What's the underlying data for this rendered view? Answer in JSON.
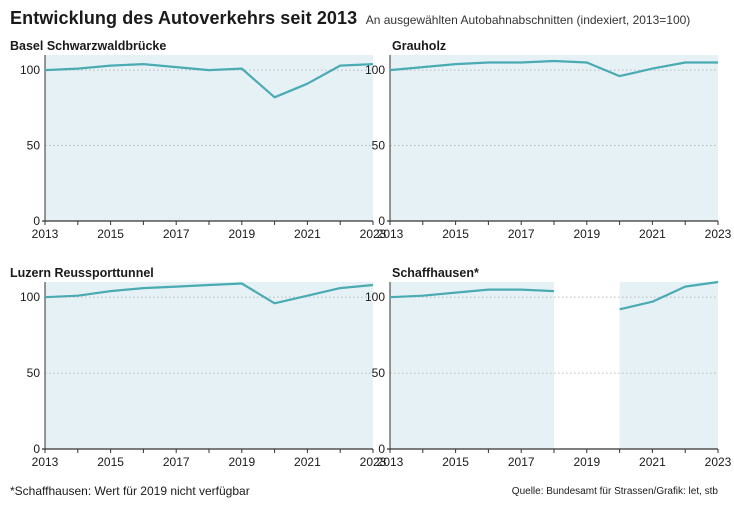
{
  "header": {
    "title": "Entwicklung des Autoverkehrs seit 2013",
    "subtitle": "An ausgewählten Autobahnabschnitten (indexiert, 2013=100)"
  },
  "footer": {
    "note": "*Schaffhausen: Wert für 2019 nicht verfügbar",
    "source": "Quelle: Bundesamt für Strassen/Grafik: let, stb"
  },
  "colors": {
    "line": "#4aabb2",
    "area": "#e6f1f6",
    "grid": "#b9b9b9",
    "axis": "#333333"
  },
  "chart_data": [
    {
      "type": "area",
      "title": "Basel Schwarzwaldbrücke",
      "x": [
        2013,
        2014,
        2015,
        2016,
        2017,
        2018,
        2019,
        2020,
        2021,
        2022,
        2023
      ],
      "y": [
        100,
        101,
        103,
        104,
        102,
        100,
        101,
        82,
        91,
        103,
        104
      ],
      "xticks": [
        2013,
        2015,
        2017,
        2019,
        2021,
        2023
      ],
      "yticks": [
        0,
        50,
        100
      ],
      "xlim": [
        2013,
        2023
      ],
      "ylim": [
        0,
        110
      ],
      "grid": "horizontal dotted"
    },
    {
      "type": "area",
      "title": "Grauholz",
      "x": [
        2013,
        2014,
        2015,
        2016,
        2017,
        2018,
        2019,
        2020,
        2021,
        2022,
        2023
      ],
      "y": [
        100,
        102,
        104,
        105,
        105,
        106,
        105,
        96,
        101,
        105,
        105
      ],
      "xticks": [
        2013,
        2015,
        2017,
        2019,
        2021,
        2023
      ],
      "yticks": [
        0,
        50,
        100
      ],
      "xlim": [
        2013,
        2023
      ],
      "ylim": [
        0,
        110
      ],
      "grid": "horizontal dotted"
    },
    {
      "type": "area",
      "title": "Luzern Reussporttunnel",
      "x": [
        2013,
        2014,
        2015,
        2016,
        2017,
        2018,
        2019,
        2020,
        2021,
        2022,
        2023
      ],
      "y": [
        100,
        101,
        104,
        106,
        107,
        108,
        109,
        96,
        101,
        106,
        108
      ],
      "xticks": [
        2013,
        2015,
        2017,
        2019,
        2021,
        2023
      ],
      "yticks": [
        0,
        50,
        100
      ],
      "xlim": [
        2013,
        2023
      ],
      "ylim": [
        0,
        110
      ],
      "grid": "horizontal dotted"
    },
    {
      "type": "area",
      "title": "Schaffhausen*",
      "x": [
        2013,
        2014,
        2015,
        2016,
        2017,
        2018,
        2019,
        2020,
        2021,
        2022,
        2023
      ],
      "y": [
        100,
        101,
        103,
        105,
        105,
        104,
        null,
        92,
        97,
        107,
        110
      ],
      "xticks": [
        2013,
        2015,
        2017,
        2019,
        2021,
        2023
      ],
      "yticks": [
        0,
        50,
        100
      ],
      "xlim": [
        2013,
        2023
      ],
      "ylim": [
        0,
        110
      ],
      "grid": "horizontal dotted"
    }
  ]
}
